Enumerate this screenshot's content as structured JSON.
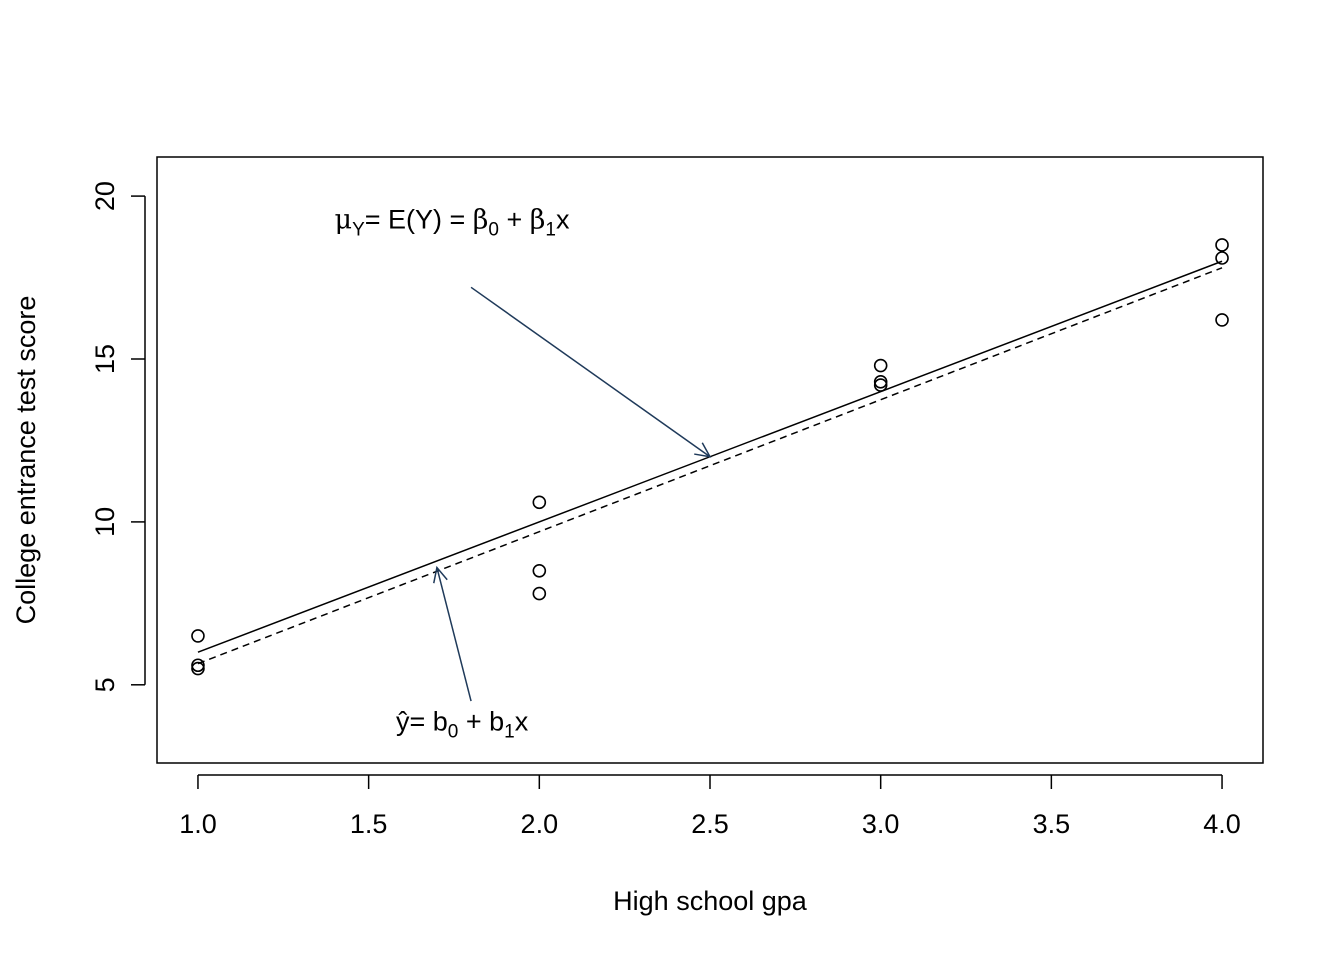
{
  "chart_data": {
    "type": "scatter",
    "title": "",
    "xlabel": "High school gpa",
    "ylabel": "College entrance test score",
    "xlim": [
      0.88,
      4.12
    ],
    "ylim": [
      2.6,
      21.2
    ],
    "x_ticks": [
      "1.0",
      "1.5",
      "2.0",
      "2.5",
      "3.0",
      "3.5",
      "4.0"
    ],
    "y_ticks": [
      "5",
      "10",
      "15",
      "20"
    ],
    "grid": false,
    "points": [
      {
        "x": 1.0,
        "y": 6.5
      },
      {
        "x": 1.0,
        "y": 5.6
      },
      {
        "x": 1.0,
        "y": 5.5
      },
      {
        "x": 2.0,
        "y": 10.6
      },
      {
        "x": 2.0,
        "y": 8.5
      },
      {
        "x": 2.0,
        "y": 7.8
      },
      {
        "x": 3.0,
        "y": 14.8
      },
      {
        "x": 3.0,
        "y": 14.3
      },
      {
        "x": 3.0,
        "y": 14.2
      },
      {
        "x": 4.0,
        "y": 18.5
      },
      {
        "x": 4.0,
        "y": 18.1
      },
      {
        "x": 4.0,
        "y": 16.2
      }
    ],
    "lines": [
      {
        "style": "solid",
        "intercept": 2.0,
        "slope": 4.0,
        "x_range": [
          1.0,
          4.0
        ]
      },
      {
        "style": "dashed",
        "intercept": 1.6,
        "slope": 4.05,
        "x_range": [
          1.0,
          4.0
        ]
      }
    ],
    "annotations": [
      {
        "id": "population-line",
        "parts": {
          "mu": "μ",
          "mu_sub": "Y",
          "eq1": "= E(Y) = ",
          "b0": "β",
          "b0_sub": "0",
          "plus": " + ",
          "b1": "β",
          "b1_sub": "1",
          "x": "x"
        },
        "anchor": [
          1.4,
          19.0
        ],
        "arrow_from": [
          1.8,
          17.2
        ],
        "arrow_to": [
          2.5,
          12.0
        ],
        "color": "#1f3a5a"
      },
      {
        "id": "fitted-line",
        "parts": {
          "yhat": "ŷ",
          "eq1": "= b",
          "b0_sub": "0",
          "plus": " + b",
          "b1_sub": "1",
          "x": "x"
        },
        "anchor": [
          1.58,
          3.6
        ],
        "arrow_from": [
          1.8,
          4.5
        ],
        "arrow_to": [
          1.7,
          8.6
        ],
        "color": "#1f3a5a"
      }
    ]
  }
}
